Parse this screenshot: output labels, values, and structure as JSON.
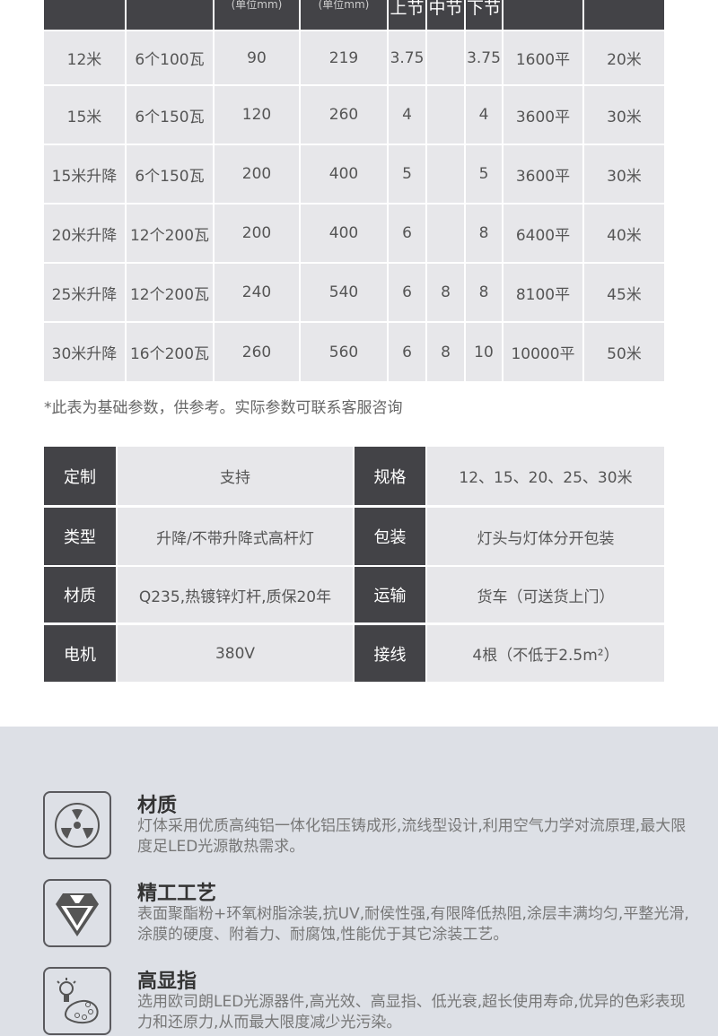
{
  "param_table": {
    "header": {
      "unit_1": "(单位mm)",
      "unit_2": "(单位mm)",
      "seg_upper": "上节",
      "seg_middle": "中节",
      "seg_lower": "下节"
    },
    "rows": [
      [
        "12米",
        "6个100瓦",
        "90",
        "219",
        "3.75",
        "",
        "3.75",
        "1600平",
        "20米"
      ],
      [
        "15米",
        "6个150瓦",
        "120",
        "260",
        "4",
        "",
        "4",
        "3600平",
        "30米"
      ],
      [
        "15米升降",
        "6个150瓦",
        "200",
        "400",
        "5",
        "",
        "5",
        "3600平",
        "30米"
      ],
      [
        "20米升降",
        "12个200瓦",
        "200",
        "400",
        "6",
        "",
        "8",
        "6400平",
        "40米"
      ],
      [
        "25米升降",
        "12个200瓦",
        "240",
        "540",
        "6",
        "8",
        "8",
        "8100平",
        "45米"
      ],
      [
        "30米升降",
        "16个200瓦",
        "260",
        "560",
        "6",
        "8",
        "10",
        "10000平",
        "50米"
      ]
    ],
    "note": "*此表为基础参数，供参考。实际参数可联系客服咨询"
  },
  "spec_table": [
    {
      "k1": "定制",
      "v1": "支持",
      "k2": "规格",
      "v2": "12、15、20、25、30米"
    },
    {
      "k1": "类型",
      "v1": "升降/不带升降式高杆灯",
      "k2": "包装",
      "v2": "灯头与灯体分开包装"
    },
    {
      "k1": "材质",
      "v1": "Q235,热镀锌灯杆,质保20年",
      "k2": "运输",
      "v2": "货车（可送货上门）"
    },
    {
      "k1": "电机",
      "v1": "380V",
      "k2": "接线",
      "v2": "4根（不低于2.5m²）"
    }
  ],
  "features": [
    {
      "icon": "radiation-fan-icon",
      "title": "材质",
      "desc": "灯体采用优质高纯铝一体化铝压铸成形,流线型设计,利用空气力学对流原理,最大限度足LED光源散热需求。"
    },
    {
      "icon": "diamond-icon",
      "title": "精工工艺",
      "desc": "表面聚酯粉+环氧树脂涂装,抗UV,耐侯性强,有限降低热阻,涂层丰满均匀,平整光滑,涂膜的硬度、附着力、耐腐蚀,性能优于其它涂装工艺。"
    },
    {
      "icon": "bulb-palette-icon",
      "title": "高显指",
      "desc": "选用欧司朗LED光源器件,高光效、高显指、低光衰,超长使用寿命,优异的色彩表现力和还原力,从而最大限度减少光污染。"
    }
  ],
  "colors": {
    "header": "#434347",
    "cell": "#e7e7ea",
    "section_bg": "#dde0e6"
  }
}
